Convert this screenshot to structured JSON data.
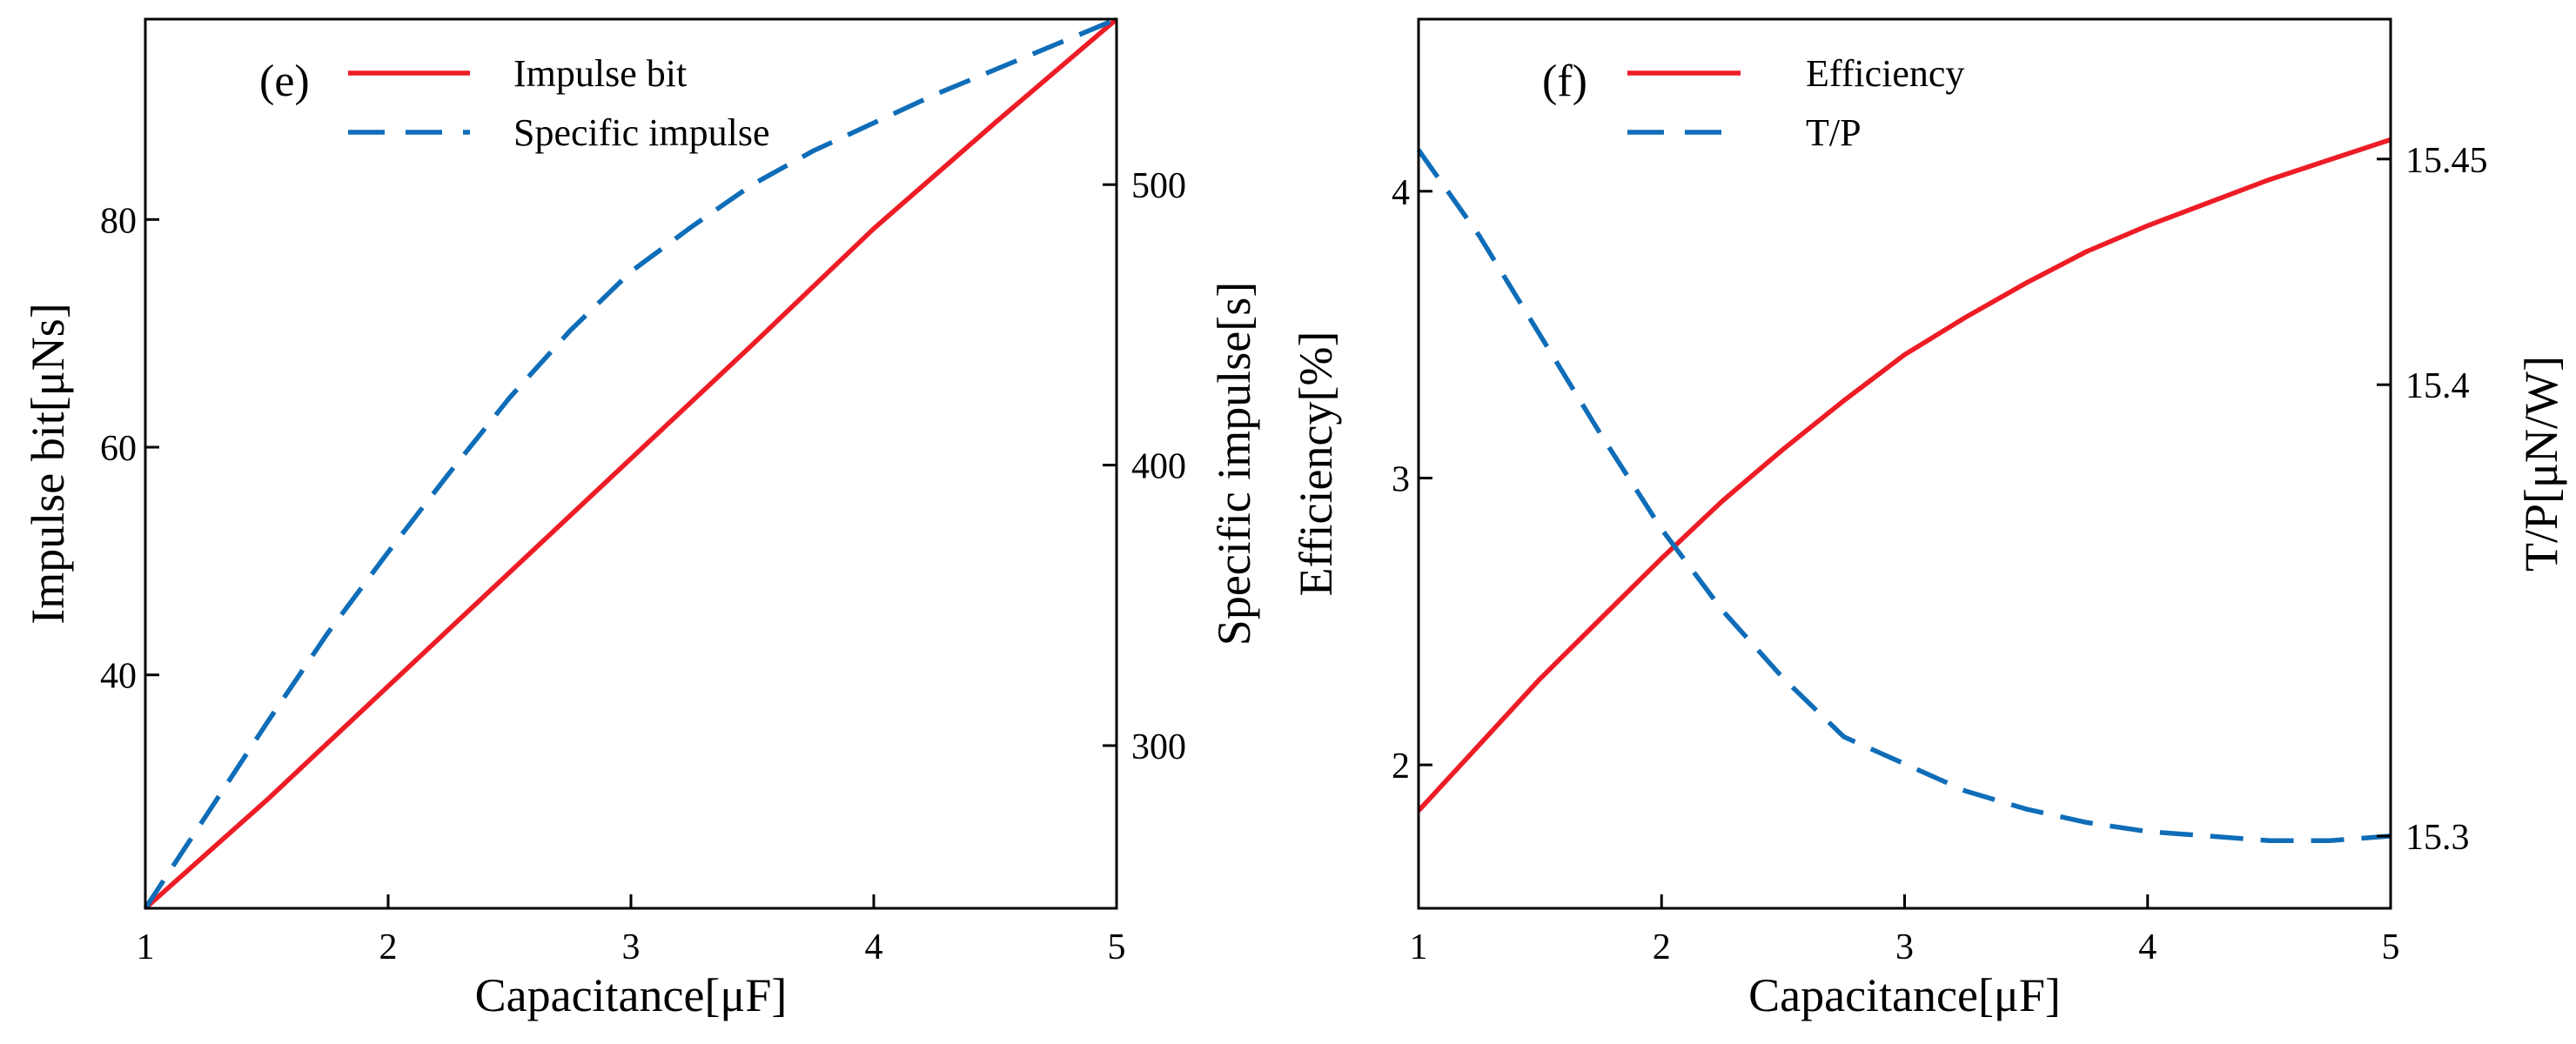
{
  "chart_data": [
    {
      "type": "line",
      "panel_label": "(e)",
      "xlabel": "Capacitance[μF]",
      "ylabel_left": "Impulse bit[μNs]",
      "ylabel_right": "Specific impulse[s]",
      "xlim": [
        1,
        5
      ],
      "ylim_left": [
        19.5,
        97.6
      ],
      "ylim_right": [
        242,
        559
      ],
      "xticks": [
        1,
        2,
        3,
        4,
        5
      ],
      "xtick_labels": [
        "1",
        "2",
        "3",
        "4",
        "5"
      ],
      "yticks_left": [
        40,
        60,
        80
      ],
      "ytick_labels_left": [
        "40",
        "60",
        "80"
      ],
      "yticks_right": [
        300,
        400,
        500
      ],
      "ytick_labels_right": [
        "300",
        "400",
        "500"
      ],
      "legend_position": "top-left",
      "series": [
        {
          "name": "Impulse bit",
          "axis": "left",
          "color": "#ee1c25",
          "style": "solid",
          "x": [
            1,
            1.5,
            2,
            2.5,
            3,
            3.5,
            4,
            4.5,
            5
          ],
          "y": [
            19.5,
            29,
            39,
            49,
            59,
            69,
            79.2,
            88.5,
            97.6
          ]
        },
        {
          "name": "Specific impulse",
          "axis": "right",
          "color": "#0f6db8",
          "style": "dashed",
          "x": [
            1,
            1.25,
            1.5,
            1.75,
            2,
            2.25,
            2.5,
            2.75,
            3,
            3.25,
            3.5,
            3.75,
            4,
            4.25,
            4.5,
            4.75,
            5
          ],
          "y": [
            242,
            275,
            308,
            340,
            369,
            397,
            424,
            448,
            469,
            485,
            500,
            512,
            522,
            532,
            541,
            550,
            559
          ]
        }
      ]
    },
    {
      "type": "line",
      "panel_label": "(f)",
      "xlabel": "Capacitance[μF]",
      "ylabel_left": "Efficiency[%]",
      "ylabel_right": "T/P[μN/W]",
      "xlim": [
        1,
        5
      ],
      "ylim_left": [
        1.5,
        4.6
      ],
      "ylim_right": [
        15.284,
        15.481
      ],
      "xticks": [
        1,
        2,
        3,
        4,
        5
      ],
      "xtick_labels": [
        "1",
        "2",
        "3",
        "4",
        "5"
      ],
      "yticks_left": [
        2,
        3,
        4
      ],
      "ytick_labels_left": [
        "2",
        "3",
        "4"
      ],
      "yticks_right": [
        15.3,
        15.4,
        15.45
      ],
      "ytick_labels_right": [
        "15.3",
        "15.4",
        "15.45"
      ],
      "legend_position": "top-left",
      "series": [
        {
          "name": "Efficiency",
          "axis": "left",
          "color": "#ee1c25",
          "style": "solid",
          "x": [
            1,
            1.25,
            1.5,
            1.75,
            2,
            2.25,
            2.5,
            2.75,
            3,
            3.25,
            3.5,
            3.75,
            4,
            4.25,
            4.5,
            4.75,
            5
          ],
          "y": [
            1.84,
            2.07,
            2.3,
            2.51,
            2.72,
            2.92,
            3.1,
            3.27,
            3.43,
            3.56,
            3.68,
            3.79,
            3.88,
            3.96,
            4.04,
            4.11,
            4.18
          ]
        },
        {
          "name": "T/P",
          "axis": "right",
          "color": "#0f6db8",
          "style": "dashed",
          "x": [
            1,
            1.25,
            1.5,
            1.75,
            2,
            2.25,
            2.5,
            2.75,
            3,
            3.25,
            3.5,
            3.75,
            4,
            4.25,
            4.5,
            4.75,
            5
          ],
          "y": [
            15.452,
            15.433,
            15.411,
            15.389,
            15.368,
            15.35,
            15.335,
            15.322,
            15.316,
            15.31,
            15.306,
            15.303,
            15.301,
            15.3,
            15.299,
            15.299,
            15.3
          ]
        }
      ]
    }
  ]
}
